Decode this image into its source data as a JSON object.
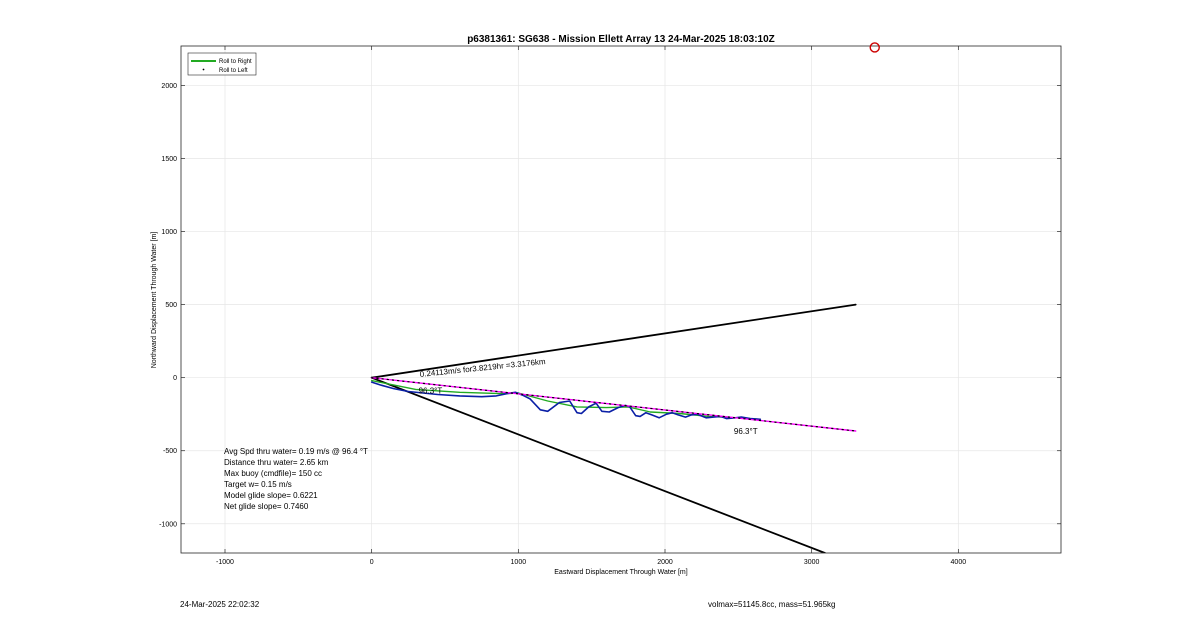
{
  "chart_data": {
    "type": "line",
    "title": "p6381361: SG638 - Mission Ellett Array 13 24-Mar-2025 18:03:10Z",
    "xlabel": "Eastward Displacement Through Water [m]",
    "ylabel": "Northward Displacement Through Water [m]",
    "xlim": [
      -1300,
      4700
    ],
    "ylim": [
      -1200,
      2270
    ],
    "xticks": [
      -1000,
      0,
      1000,
      2000,
      3000,
      4000
    ],
    "yticks": [
      -1000,
      -500,
      0,
      500,
      1000,
      1500,
      2000
    ],
    "grid": true,
    "legend_position": "top-left",
    "legend": [
      {
        "label": "Roll to Right",
        "color": "#22aa22",
        "style": "solid"
      },
      {
        "label": "Roll to Left",
        "color": "#000000",
        "style": "dot"
      }
    ],
    "series": [
      {
        "name": "",
        "color": "#0a1fa6",
        "x": [
          0,
          60,
          150,
          250,
          350,
          450,
          600,
          750,
          850,
          920,
          980,
          1030,
          1080,
          1150,
          1200,
          1280,
          1350,
          1400,
          1430,
          1480,
          1530,
          1570,
          1620,
          1680,
          1730,
          1760,
          1800,
          1830,
          1870,
          1910,
          1960,
          2010,
          2050,
          2090,
          2140,
          2180,
          2220,
          2280,
          2330,
          2380,
          2420,
          2480,
          2520,
          2580,
          2650
        ],
        "y": [
          -30,
          -50,
          -75,
          -95,
          -105,
          -115,
          -125,
          -130,
          -125,
          -110,
          -100,
          -120,
          -145,
          -220,
          -230,
          -170,
          -160,
          -240,
          -245,
          -200,
          -175,
          -230,
          -235,
          -205,
          -190,
          -200,
          -260,
          -265,
          -240,
          -255,
          -275,
          -250,
          -240,
          -255,
          -270,
          -255,
          -250,
          -275,
          -270,
          -265,
          -280,
          -275,
          -270,
          -280,
          -285
        ]
      },
      {
        "name": "",
        "color": "#22aa22",
        "x": [
          0,
          300,
          600,
          900,
          1000,
          1200,
          1400,
          1600,
          1750,
          1900,
          2100,
          2300,
          2500,
          2650
        ],
        "y": [
          -20,
          -80,
          -100,
          -110,
          -105,
          -160,
          -200,
          -205,
          -200,
          -235,
          -245,
          -265,
          -275,
          -285
        ]
      },
      {
        "name": "",
        "color": "#ff00ff",
        "dashed": true,
        "x": [
          0,
          3300
        ],
        "y": [
          0,
          -365
        ]
      },
      {
        "name": "",
        "color": "#000000",
        "x": [
          0,
          3300
        ],
        "y": [
          0,
          500
        ]
      },
      {
        "name": "",
        "color": "#000000",
        "x": [
          0,
          3090
        ],
        "y": [
          0,
          -1200
        ]
      }
    ],
    "annotations": [
      {
        "text": "0.24113m/s for3.8219hr =3.3176km",
        "x": 330,
        "y": 5,
        "rotate": -5.9
      },
      {
        "text": "96.3°T",
        "x": 320,
        "y": -110,
        "rotate": 0
      },
      {
        "text": "96.3°T",
        "x": 2470,
        "y": -385,
        "rotate": 0
      }
    ],
    "marker": {
      "x": 3430,
      "y": 2260,
      "shape": "circle",
      "color": "#cc0000"
    },
    "info_lines": [
      "Avg Spd thru water=  0.19 m/s @  96.4 °T",
      "Distance thru water=  2.65 km",
      "Max buoy (cmdfile)= 150 cc",
      "Target w= 0.15 m/s",
      "Model glide slope= 0.6221",
      "Net glide slope= 0.7460"
    ]
  },
  "footer": {
    "date": "24-Mar-2025 22:02:32",
    "mass_info": "volmax=51145.8cc, mass=51.965kg"
  }
}
